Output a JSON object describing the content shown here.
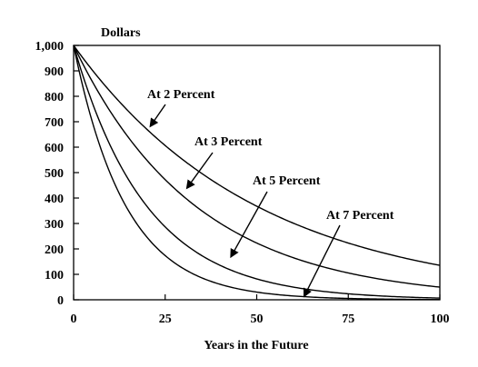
{
  "chart_data": {
    "type": "line",
    "xlabel": "Years in the Future",
    "ylabel": "Dollars",
    "xlim": [
      0,
      100
    ],
    "ylim": [
      0,
      1000
    ],
    "xticks": [
      "0",
      "25",
      "50",
      "75",
      "100"
    ],
    "yticks": [
      "0",
      "100",
      "200",
      "300",
      "400",
      "500",
      "600",
      "700",
      "800",
      "900",
      "1,000"
    ],
    "grid": false,
    "x": [
      0,
      5,
      10,
      15,
      20,
      25,
      30,
      35,
      40,
      45,
      50,
      55,
      60,
      65,
      70,
      75,
      80,
      85,
      90,
      95,
      100
    ],
    "series": [
      {
        "name": "At 2 Percent",
        "rate": 0.02,
        "values": [
          1000,
          906,
          820,
          743,
          673,
          610,
          552,
          500,
          453,
          410,
          372,
          337,
          305,
          276,
          250,
          227,
          205,
          186,
          168,
          153,
          138
        ]
      },
      {
        "name": "At 3 Percent",
        "rate": 0.03,
        "values": [
          1000,
          863,
          744,
          642,
          554,
          478,
          412,
          355,
          307,
          264,
          228,
          197,
          170,
          146,
          126,
          109,
          94,
          81,
          70,
          60,
          52
        ]
      },
      {
        "name": "At 5 Percent",
        "rate": 0.05,
        "values": [
          1000,
          784,
          614,
          481,
          377,
          295,
          231,
          181,
          142,
          111,
          87,
          68,
          54,
          42,
          33,
          26,
          20,
          16,
          12,
          10,
          8
        ]
      },
      {
        "name": "At 7 Percent",
        "rate": 0.07,
        "values": [
          1000,
          713,
          508,
          362,
          258,
          184,
          131,
          94,
          67,
          48,
          34,
          24,
          17,
          12,
          9,
          6,
          4,
          3,
          2,
          2,
          1
        ]
      }
    ],
    "annotations": [
      {
        "text": "At 2 Percent",
        "series": "At 2 Percent",
        "arrow_to": [
          21,
          683
        ]
      },
      {
        "text": "At 3 Percent",
        "series": "At 3 Percent",
        "arrow_to": [
          31,
          440
        ]
      },
      {
        "text": "At 5 Percent",
        "series": "At 5 Percent",
        "arrow_to": [
          43,
          170
        ]
      },
      {
        "text": "At 7 Percent",
        "series": "At 7 Percent",
        "arrow_to": [
          63,
          15
        ]
      }
    ]
  }
}
